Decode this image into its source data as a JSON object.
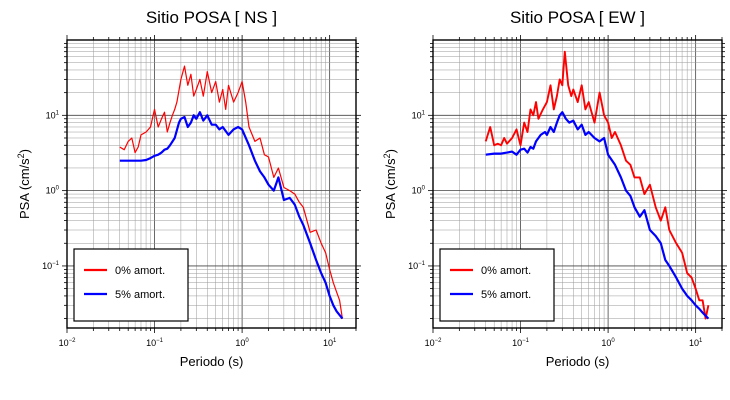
{
  "chart_data": [
    {
      "type": "line",
      "title": "Sitio POSA [ NS ]",
      "xlabel": "Periodo (s)",
      "ylabel": "PSA (cm/s²)",
      "ylabel_base": "PSA (cm/s",
      "ylabel_sup": "2",
      "ylabel_end": ")",
      "xscale": "log",
      "yscale": "log",
      "xlim": [
        0.01,
        20
      ],
      "ylim": [
        0.015,
        100
      ],
      "grid": true,
      "legend_position": "bottom-left",
      "x_ticks": [
        {
          "base": "10",
          "exp": "−2",
          "value": 0.01
        },
        {
          "base": "10",
          "exp": "−1",
          "value": 0.1
        },
        {
          "base": "10",
          "exp": "0",
          "value": 1
        },
        {
          "base": "10",
          "exp": "1",
          "value": 10
        }
      ],
      "y_ticks": [
        {
          "base": "10",
          "exp": "−1",
          "value": 0.1
        },
        {
          "base": "10",
          "exp": "0",
          "value": 1
        },
        {
          "base": "10",
          "exp": "1",
          "value": 10
        }
      ],
      "series": [
        {
          "name": "0% amort.",
          "color": "#ff0000",
          "x": [
            0.04,
            0.045,
            0.05,
            0.055,
            0.06,
            0.065,
            0.07,
            0.08,
            0.09,
            0.1,
            0.11,
            0.12,
            0.13,
            0.14,
            0.15,
            0.16,
            0.17,
            0.18,
            0.2,
            0.22,
            0.24,
            0.26,
            0.28,
            0.3,
            0.33,
            0.36,
            0.4,
            0.45,
            0.5,
            0.55,
            0.6,
            0.65,
            0.7,
            0.8,
            0.9,
            1.0,
            1.1,
            1.2,
            1.4,
            1.6,
            1.8,
            2.0,
            2.3,
            2.6,
            3.0,
            3.5,
            4.0,
            4.5,
            5.0,
            6.0,
            7.0,
            8.0,
            9.0,
            10.0,
            11.0,
            12.0,
            13.0,
            14.0
          ],
          "y": [
            3.8,
            3.5,
            4.5,
            5.0,
            3.2,
            3.8,
            5.5,
            6.0,
            7.0,
            12.0,
            7.0,
            9.0,
            11.0,
            6.0,
            8.0,
            10.0,
            12.0,
            15.0,
            30.0,
            45.0,
            25.0,
            35.0,
            18.0,
            22.0,
            30.0,
            18.0,
            38.0,
            20.0,
            28.0,
            15.0,
            22.0,
            12.0,
            25.0,
            15.0,
            20.0,
            28.0,
            15.0,
            7.0,
            4.5,
            5.0,
            3.0,
            2.8,
            1.5,
            2.0,
            1.1,
            1.0,
            0.9,
            0.7,
            0.6,
            0.28,
            0.3,
            0.2,
            0.15,
            0.09,
            0.06,
            0.045,
            0.035,
            0.02
          ]
        },
        {
          "name": "5% amort.",
          "color": "#0000ff",
          "x": [
            0.04,
            0.05,
            0.06,
            0.07,
            0.08,
            0.09,
            0.1,
            0.11,
            0.12,
            0.13,
            0.14,
            0.15,
            0.17,
            0.19,
            0.2,
            0.22,
            0.24,
            0.26,
            0.28,
            0.3,
            0.33,
            0.36,
            0.4,
            0.45,
            0.5,
            0.55,
            0.6,
            0.7,
            0.8,
            0.9,
            1.0,
            1.2,
            1.4,
            1.6,
            1.8,
            2.0,
            2.3,
            2.6,
            3.0,
            3.5,
            4.0,
            4.5,
            5.0,
            6.0,
            7.0,
            8.0,
            9.0,
            10.0,
            11.0,
            12.0,
            14.0
          ],
          "y": [
            2.5,
            2.5,
            2.5,
            2.5,
            2.55,
            2.7,
            2.9,
            3.0,
            3.2,
            3.5,
            3.6,
            4.0,
            5.0,
            8.0,
            9.0,
            9.5,
            7.0,
            8.0,
            10.0,
            9.0,
            11.0,
            8.5,
            10.0,
            7.5,
            7.5,
            6.5,
            7.0,
            5.5,
            6.5,
            7.0,
            6.5,
            4.0,
            2.5,
            1.8,
            1.5,
            1.2,
            1.0,
            1.5,
            0.75,
            0.8,
            0.65,
            0.45,
            0.35,
            0.2,
            0.12,
            0.08,
            0.06,
            0.04,
            0.03,
            0.025,
            0.02
          ]
        }
      ]
    },
    {
      "type": "line",
      "title": "Sitio POSA [ EW ]",
      "xlabel": "Periodo (s)",
      "ylabel": "PSA (cm/s²)",
      "ylabel_base": "PSA (cm/s",
      "ylabel_sup": "2",
      "ylabel_end": ")",
      "xscale": "log",
      "yscale": "log",
      "xlim": [
        0.01,
        20
      ],
      "ylim": [
        0.015,
        100
      ],
      "grid": true,
      "legend_position": "bottom-left",
      "x_ticks": [
        {
          "base": "10",
          "exp": "−2",
          "value": 0.01
        },
        {
          "base": "10",
          "exp": "−1",
          "value": 0.1
        },
        {
          "base": "10",
          "exp": "0",
          "value": 1
        },
        {
          "base": "10",
          "exp": "1",
          "value": 10
        }
      ],
      "y_ticks": [
        {
          "base": "10",
          "exp": "−1",
          "value": 0.1
        },
        {
          "base": "10",
          "exp": "0",
          "value": 1
        },
        {
          "base": "10",
          "exp": "1",
          "value": 10
        }
      ],
      "series": [
        {
          "name": "0% amort.",
          "color": "#ff0000",
          "x": [
            0.04,
            0.045,
            0.05,
            0.055,
            0.06,
            0.065,
            0.07,
            0.08,
            0.09,
            0.1,
            0.11,
            0.12,
            0.13,
            0.14,
            0.15,
            0.16,
            0.18,
            0.2,
            0.22,
            0.24,
            0.26,
            0.28,
            0.3,
            0.32,
            0.35,
            0.38,
            0.4,
            0.45,
            0.5,
            0.55,
            0.6,
            0.7,
            0.8,
            0.9,
            1.0,
            1.1,
            1.2,
            1.4,
            1.6,
            1.8,
            2.0,
            2.3,
            2.6,
            3.0,
            3.5,
            4.0,
            4.5,
            5.0,
            6.0,
            7.0,
            8.0,
            9.0,
            10.0,
            11.0,
            12.0,
            13.0,
            14.0
          ],
          "y": [
            4.5,
            7.0,
            4.0,
            4.2,
            4.0,
            5.0,
            4.2,
            5.0,
            6.5,
            4.0,
            8.0,
            6.0,
            12.0,
            10.0,
            15.0,
            9.0,
            12.0,
            15.0,
            25.0,
            12.0,
            18.0,
            30.0,
            25.0,
            70.0,
            25.0,
            18.0,
            22.0,
            15.0,
            25.0,
            12.0,
            15.0,
            8.0,
            20.0,
            10.0,
            8.0,
            5.0,
            6.0,
            4.0,
            2.5,
            2.2,
            1.5,
            1.5,
            0.9,
            1.2,
            0.6,
            0.4,
            0.6,
            0.3,
            0.2,
            0.15,
            0.08,
            0.07,
            0.05,
            0.035,
            0.035,
            0.02,
            0.03
          ]
        },
        {
          "name": "5% amort.",
          "color": "#0000ff",
          "x": [
            0.04,
            0.05,
            0.06,
            0.07,
            0.08,
            0.09,
            0.1,
            0.11,
            0.12,
            0.13,
            0.14,
            0.15,
            0.17,
            0.19,
            0.2,
            0.22,
            0.24,
            0.26,
            0.28,
            0.3,
            0.33,
            0.36,
            0.4,
            0.45,
            0.5,
            0.55,
            0.6,
            0.7,
            0.8,
            0.9,
            1.0,
            1.2,
            1.4,
            1.6,
            1.8,
            2.0,
            2.3,
            2.6,
            3.0,
            3.5,
            4.0,
            4.5,
            5.0,
            6.0,
            7.0,
            8.0,
            9.0,
            10.0,
            11.0,
            12.0,
            14.0
          ],
          "y": [
            3.0,
            3.1,
            3.1,
            3.2,
            3.3,
            3.0,
            3.5,
            3.6,
            3.2,
            3.8,
            3.6,
            4.5,
            5.5,
            6.0,
            5.5,
            7.0,
            6.0,
            8.0,
            10.0,
            11.0,
            9.0,
            8.0,
            8.5,
            6.5,
            7.5,
            5.5,
            6.0,
            5.0,
            4.5,
            5.0,
            3.0,
            2.2,
            1.5,
            1.0,
            0.85,
            0.6,
            0.45,
            0.55,
            0.3,
            0.25,
            0.2,
            0.12,
            0.1,
            0.07,
            0.05,
            0.04,
            0.035,
            0.03,
            0.027,
            0.024,
            0.02
          ]
        }
      ]
    }
  ]
}
